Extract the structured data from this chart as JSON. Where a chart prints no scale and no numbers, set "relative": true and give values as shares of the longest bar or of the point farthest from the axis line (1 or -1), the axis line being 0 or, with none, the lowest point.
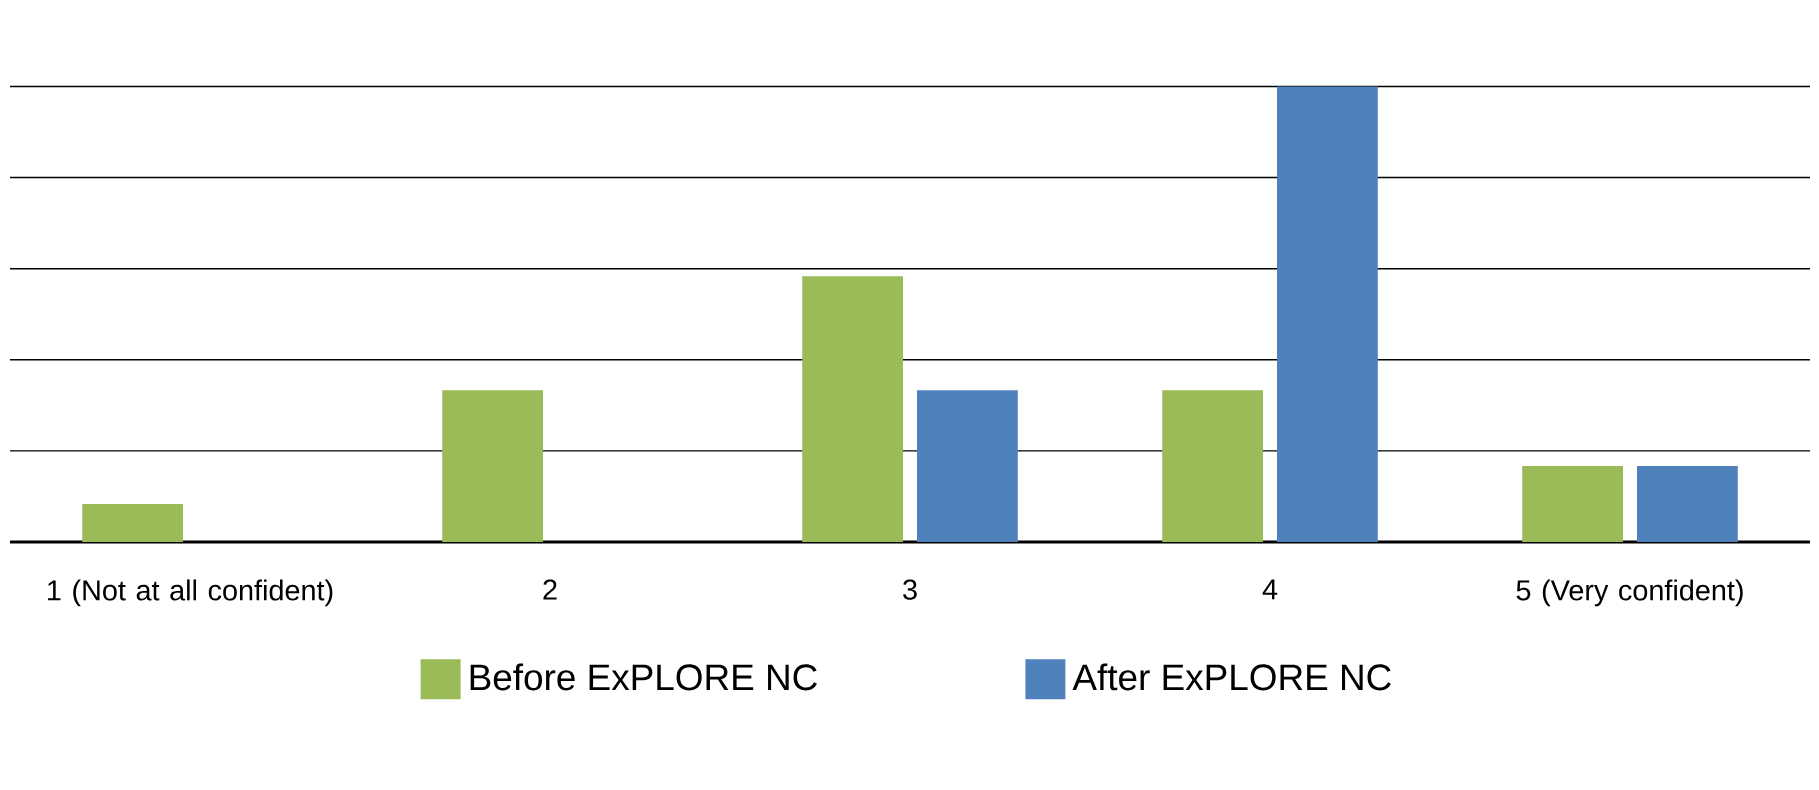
{
  "chart_data": {
    "type": "bar",
    "relative": true,
    "grid": "y",
    "legend": "bottom",
    "categories": [
      "1 (Not at all confident)",
      "2",
      "3",
      "4",
      "5 (Very confident)"
    ],
    "series": [
      {
        "name": "Before ExPLORE NC",
        "color": "#9bbb59",
        "values": [
          0.0833,
          0.3333,
          0.5833,
          0.3333,
          0.1667
        ]
      },
      {
        "name": "After ExPLORE NC",
        "color": "#4f81bd",
        "values": [
          0,
          0,
          0.3333,
          1,
          0.1667
        ]
      }
    ]
  }
}
